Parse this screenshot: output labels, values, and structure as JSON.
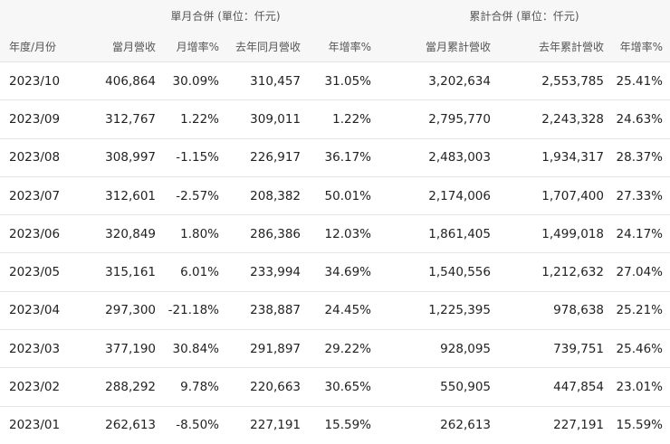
{
  "header": {
    "group_monthly": "單月合併 (單位：仟元)",
    "group_cumulative": "累計合併 (單位：仟元)",
    "columns": [
      "年度/月份",
      "當月營收",
      "月增率%",
      "去年同月營收",
      "年增率%",
      "當月累計營收",
      "去年累計營收",
      "年增率%"
    ]
  },
  "rows": [
    [
      "2023/10",
      "406,864",
      "30.09%",
      "310,457",
      "31.05%",
      "3,202,634",
      "2,553,785",
      "25.41%"
    ],
    [
      "2023/09",
      "312,767",
      "1.22%",
      "309,011",
      "1.22%",
      "2,795,770",
      "2,243,328",
      "24.63%"
    ],
    [
      "2023/08",
      "308,997",
      "-1.15%",
      "226,917",
      "36.17%",
      "2,483,003",
      "1,934,317",
      "28.37%"
    ],
    [
      "2023/07",
      "312,601",
      "-2.57%",
      "208,382",
      "50.01%",
      "2,174,006",
      "1,707,400",
      "27.33%"
    ],
    [
      "2023/06",
      "320,849",
      "1.80%",
      "286,386",
      "12.03%",
      "1,861,405",
      "1,499,018",
      "24.17%"
    ],
    [
      "2023/05",
      "315,161",
      "6.01%",
      "233,994",
      "34.69%",
      "1,540,556",
      "1,212,632",
      "27.04%"
    ],
    [
      "2023/04",
      "297,300",
      "-21.18%",
      "238,887",
      "24.45%",
      "1,225,395",
      "978,638",
      "25.21%"
    ],
    [
      "2023/03",
      "377,190",
      "30.84%",
      "291,897",
      "29.22%",
      "928,095",
      "739,751",
      "25.46%"
    ],
    [
      "2023/02",
      "288,292",
      "9.78%",
      "220,663",
      "30.65%",
      "550,905",
      "447,854",
      "23.01%"
    ],
    [
      "2023/01",
      "262,613",
      "-8.50%",
      "227,191",
      "15.59%",
      "262,613",
      "227,191",
      "15.59%"
    ]
  ]
}
